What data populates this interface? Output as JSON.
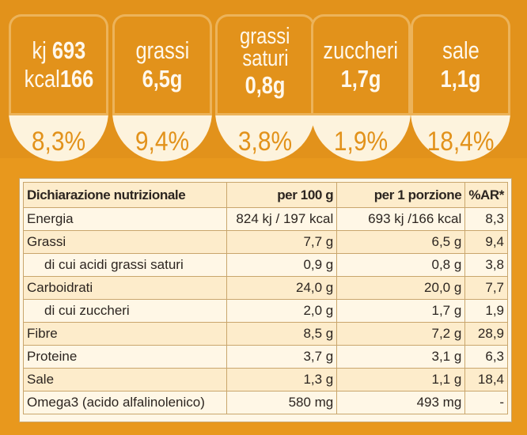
{
  "badges": [
    {
      "line1_light": "kj",
      "line1_bold": "693",
      "line2_light": "kcal",
      "line2_bold": "166",
      "percent": "8,3%"
    },
    {
      "line1_light": "grassi",
      "line2_bold": "6,5g",
      "percent": "9,4%"
    },
    {
      "line1_light": "grassi",
      "line1b_light": "saturi",
      "line2_bold": "0,8g",
      "percent": "3,8%"
    },
    {
      "line1_light": "zuccheri",
      "line2_bold": "1,7g",
      "percent": "1,9%"
    },
    {
      "line1_light": "sale",
      "line2_bold": "1,1g",
      "percent": "18,4%"
    }
  ],
  "table": {
    "headers": [
      "Dichiarazione nutrizionale",
      "per 100 g",
      "per 1 porzione",
      "%AR*"
    ],
    "rows": [
      {
        "label": "Energia",
        "sub": false,
        "per100": "824 kj  / 197 kcal",
        "portion": "693 kj  /166 kcal",
        "ar": "8,3"
      },
      {
        "label": "Grassi",
        "sub": false,
        "per100": "7,7 g",
        "portion": "6,5 g",
        "ar": "9,4"
      },
      {
        "label": "di cui acidi grassi saturi",
        "sub": true,
        "per100": "0,9 g",
        "portion": "0,8 g",
        "ar": "3,8"
      },
      {
        "label": "Carboidrati",
        "sub": false,
        "per100": "24,0 g",
        "portion": "20,0 g",
        "ar": "7,7"
      },
      {
        "label": "di cui zuccheri",
        "sub": true,
        "per100": "2,0 g",
        "portion": "1,7 g",
        "ar": "1,9"
      },
      {
        "label": "Fibre",
        "sub": false,
        "per100": "8,5 g",
        "portion": "7,2 g",
        "ar": "28,9"
      },
      {
        "label": "Proteine",
        "sub": false,
        "per100": "3,7 g",
        "portion": "3,1 g",
        "ar": "6,3"
      },
      {
        "label": "Sale",
        "sub": false,
        "per100": "1,3 g",
        "portion": "1,1 g",
        "ar": "18,4"
      },
      {
        "label": "Omega3 (acido alfalinolenico)",
        "sub": false,
        "per100": "580 mg",
        "portion": "493 mg",
        "ar": "-"
      }
    ]
  }
}
